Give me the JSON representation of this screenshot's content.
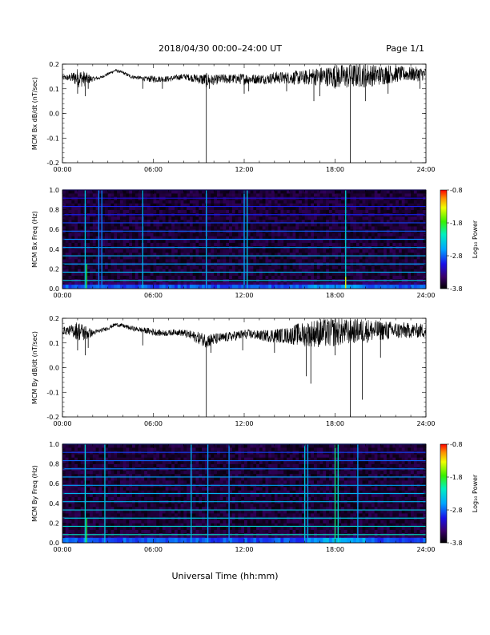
{
  "header": {
    "title": "2018/04/30   00:00–24:00 UT",
    "page": "Page 1/1"
  },
  "xaxis_label": "Universal Time (hh:mm)",
  "colors": {
    "trace": "#000000",
    "background": "#ffffff"
  },
  "chart_data": [
    {
      "type": "line",
      "ylabel": "MCM Bx dB/dt (nT/sec)",
      "xlim": [
        0,
        24
      ],
      "ylim": [
        -0.2,
        0.2
      ],
      "xticks": [
        "00:00",
        "06:00",
        "12:00",
        "18:00",
        "24:00"
      ],
      "yticks": [
        "-0.2",
        "-0.1",
        "0.0",
        "0.1",
        "0.2"
      ],
      "series": [
        {
          "values_x": [
            0,
            0.5,
            1,
            1.5,
            2,
            2.5,
            3,
            3.5,
            4,
            4.5,
            5,
            5.5,
            6,
            6.5,
            7,
            7.5,
            8,
            8.5,
            9,
            9.5,
            10,
            10.5,
            11,
            11.5,
            12,
            12.5,
            13,
            13.5,
            14,
            14.5,
            15,
            15.5,
            16,
            16.5,
            17,
            17.5,
            18,
            18.5,
            19,
            19.5,
            20,
            20.5,
            21,
            21.5,
            22,
            22.5,
            23,
            23.5,
            24
          ],
          "values_y": [
            0.145,
            0.145,
            0.145,
            0.14,
            0.14,
            0.145,
            0.16,
            0.175,
            0.165,
            0.15,
            0.145,
            0.14,
            0.14,
            0.14,
            0.14,
            0.145,
            0.15,
            0.145,
            0.14,
            0.135,
            0.135,
            0.14,
            0.14,
            0.14,
            0.14,
            0.14,
            0.14,
            0.14,
            0.145,
            0.145,
            0.145,
            0.145,
            0.145,
            0.15,
            0.15,
            0.15,
            0.15,
            0.15,
            0.15,
            0.155,
            0.155,
            0.155,
            0.155,
            0.16,
            0.16,
            0.16,
            0.16,
            0.16,
            0.16
          ],
          "noise": [
            0.01,
            0.015,
            0.04,
            0.03,
            0.01,
            0.006,
            0.006,
            0.006,
            0.006,
            0.008,
            0.008,
            0.01,
            0.015,
            0.012,
            0.012,
            0.012,
            0.012,
            0.015,
            0.02,
            0.03,
            0.02,
            0.02,
            0.02,
            0.02,
            0.025,
            0.02,
            0.02,
            0.02,
            0.025,
            0.025,
            0.025,
            0.03,
            0.03,
            0.035,
            0.04,
            0.04,
            0.05,
            0.05,
            0.05,
            0.05,
            0.05,
            0.045,
            0.04,
            0.04,
            0.035,
            0.03,
            0.03,
            0.03,
            0.025
          ],
          "spikes": [
            [
              1.0,
              0.08
            ],
            [
              1.5,
              0.07
            ],
            [
              1.7,
              0.1
            ],
            [
              5.3,
              0.1
            ],
            [
              6.6,
              0.1
            ],
            [
              9.5,
              -0.2
            ],
            [
              9.7,
              0.1
            ],
            [
              12.0,
              0.08
            ],
            [
              12.3,
              0.09
            ],
            [
              14.8,
              0.09
            ],
            [
              16.6,
              0.05
            ],
            [
              17.0,
              0.07
            ],
            [
              19.0,
              -0.2
            ],
            [
              20.0,
              0.05
            ],
            [
              21.5,
              0.08
            ],
            [
              23.6,
              0.1
            ]
          ]
        }
      ]
    },
    {
      "type": "heatmap",
      "ylabel": "MCM Bx Freq (Hz)",
      "xlim": [
        0,
        24
      ],
      "ylim": [
        0.0,
        1.0
      ],
      "xticks": [
        "00:00",
        "06:00",
        "12:00",
        "18:00",
        "24:00"
      ],
      "yticks": [
        "0.0",
        "0.2",
        "0.4",
        "0.6",
        "0.8",
        "1.0"
      ],
      "color_range": [
        -3.8,
        -0.8
      ],
      "colorbar_ticks": [
        "-0.8",
        "-1.8",
        "-2.8",
        "-3.8"
      ],
      "colorbar_label": "Log₁₀ Power",
      "harmonics_hz": [
        0.083,
        0.167,
        0.25,
        0.333,
        0.417,
        0.5,
        0.583,
        0.667,
        0.75,
        0.833,
        0.917,
        1.0
      ],
      "harmonic_level": [
        -2.4,
        -2.5,
        -2.6,
        -2.5,
        -2.6,
        -2.7,
        -2.8,
        -2.9,
        -3.0,
        -3.0,
        -3.1,
        -3.1
      ],
      "vertical_lines": [
        [
          1.5,
          -2.4,
          1.0
        ],
        [
          1.6,
          -1.9,
          0.25
        ],
        [
          2.4,
          -2.7,
          1.0
        ],
        [
          2.6,
          -2.7,
          1.0
        ],
        [
          5.3,
          -2.5,
          1.0
        ],
        [
          9.5,
          -2.5,
          1.0
        ],
        [
          12.0,
          -2.6,
          1.0
        ],
        [
          12.2,
          -2.4,
          1.0
        ],
        [
          18.7,
          -2.3,
          1.0
        ],
        [
          18.7,
          -1.3,
          0.12
        ]
      ],
      "low_freq_band": [
        0.0,
        0.04
      ]
    },
    {
      "type": "line",
      "ylabel": "MCM By dB/dt (nT/sec)",
      "xlim": [
        0,
        24
      ],
      "ylim": [
        -0.2,
        0.2
      ],
      "xticks": [
        "00:00",
        "06:00",
        "12:00",
        "18:00",
        "24:00"
      ],
      "yticks": [
        "-0.2",
        "-0.1",
        "0.0",
        "0.1",
        "0.2"
      ],
      "series": [
        {
          "values_x": [
            0,
            0.5,
            1,
            1.5,
            2,
            2.5,
            3,
            3.5,
            4,
            4.5,
            5,
            5.5,
            6,
            6.5,
            7,
            7.5,
            8,
            8.5,
            9,
            9.5,
            10,
            10.5,
            11,
            11.5,
            12,
            12.5,
            13,
            13.5,
            14,
            14.5,
            15,
            15.5,
            16,
            16.5,
            17,
            17.5,
            18,
            18.5,
            19,
            19.5,
            20,
            20.5,
            21,
            21.5,
            22,
            22.5,
            23,
            23.5,
            24
          ],
          "values_y": [
            0.15,
            0.15,
            0.15,
            0.14,
            0.14,
            0.15,
            0.16,
            0.175,
            0.17,
            0.16,
            0.155,
            0.15,
            0.145,
            0.14,
            0.14,
            0.145,
            0.14,
            0.13,
            0.12,
            0.11,
            0.115,
            0.12,
            0.125,
            0.13,
            0.135,
            0.135,
            0.13,
            0.13,
            0.13,
            0.13,
            0.13,
            0.135,
            0.135,
            0.14,
            0.14,
            0.14,
            0.145,
            0.145,
            0.145,
            0.15,
            0.15,
            0.15,
            0.15,
            0.15,
            0.15,
            0.15,
            0.15,
            0.15,
            0.15
          ],
          "noise": [
            0.015,
            0.02,
            0.04,
            0.035,
            0.012,
            0.008,
            0.008,
            0.008,
            0.008,
            0.01,
            0.01,
            0.012,
            0.015,
            0.012,
            0.012,
            0.012,
            0.015,
            0.02,
            0.025,
            0.03,
            0.025,
            0.02,
            0.02,
            0.02,
            0.02,
            0.02,
            0.02,
            0.025,
            0.03,
            0.03,
            0.035,
            0.045,
            0.05,
            0.055,
            0.06,
            0.06,
            0.06,
            0.055,
            0.05,
            0.05,
            0.05,
            0.045,
            0.04,
            0.04,
            0.035,
            0.035,
            0.03,
            0.03,
            0.03
          ],
          "spikes": [
            [
              1.0,
              0.07
            ],
            [
              1.5,
              0.05
            ],
            [
              1.7,
              0.08
            ],
            [
              5.3,
              0.09
            ],
            [
              9.5,
              -0.2
            ],
            [
              9.8,
              0.06
            ],
            [
              11.9,
              0.07
            ],
            [
              14.0,
              0.06
            ],
            [
              16.1,
              -0.035
            ],
            [
              16.4,
              -0.065
            ],
            [
              18.0,
              0.05
            ],
            [
              19.0,
              -0.2
            ],
            [
              19.8,
              -0.13
            ],
            [
              21.0,
              0.04
            ]
          ]
        }
      ]
    },
    {
      "type": "heatmap",
      "ylabel": "MCM By Freq (Hz)",
      "xlim": [
        0,
        24
      ],
      "ylim": [
        0.0,
        1.0
      ],
      "xticks": [
        "00:00",
        "06:00",
        "12:00",
        "18:00",
        "24:00"
      ],
      "yticks": [
        "0.0",
        "0.2",
        "0.4",
        "0.6",
        "0.8",
        "1.0"
      ],
      "color_range": [
        -3.8,
        -0.8
      ],
      "colorbar_ticks": [
        "-0.8",
        "-1.8",
        "-2.8",
        "-3.8"
      ],
      "colorbar_label": "Log₁₀ Power",
      "harmonics_hz": [
        0.083,
        0.167,
        0.25,
        0.333,
        0.417,
        0.5,
        0.583,
        0.667,
        0.75,
        0.833,
        0.917,
        1.0
      ],
      "harmonic_level": [
        -2.2,
        -2.3,
        -2.4,
        -2.4,
        -2.5,
        -2.5,
        -2.6,
        -2.6,
        -2.7,
        -2.8,
        -2.9,
        -2.9
      ],
      "vertical_lines": [
        [
          1.5,
          -2.3,
          1.0
        ],
        [
          1.6,
          -1.9,
          0.25
        ],
        [
          2.8,
          -2.4,
          1.0
        ],
        [
          8.5,
          -2.5,
          1.0
        ],
        [
          9.6,
          -2.6,
          1.0
        ],
        [
          11.0,
          -2.7,
          1.0
        ],
        [
          16.0,
          -2.4,
          1.0
        ],
        [
          16.2,
          -2.5,
          1.0
        ],
        [
          18.0,
          -2.0,
          1.0
        ],
        [
          18.2,
          -2.2,
          1.0
        ],
        [
          19.5,
          -2.6,
          1.0
        ]
      ],
      "low_freq_band": [
        0.0,
        0.05
      ]
    }
  ]
}
